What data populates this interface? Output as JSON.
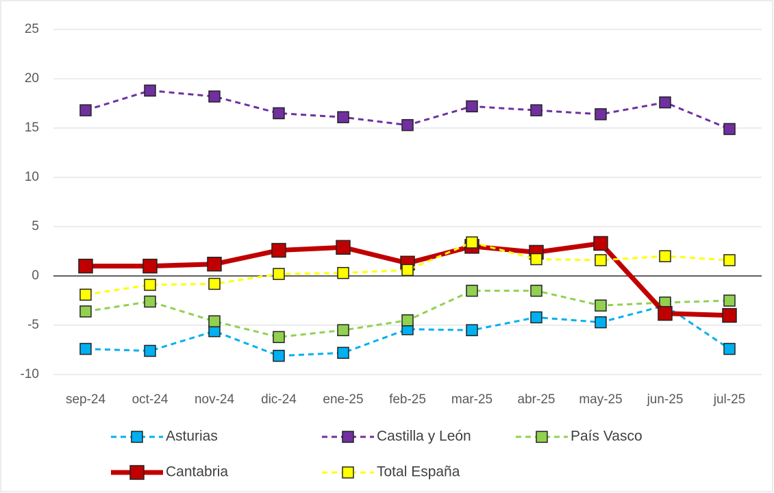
{
  "chart_data": {
    "type": "line",
    "categories": [
      "sep-24",
      "oct-24",
      "nov-24",
      "dic-24",
      "ene-25",
      "feb-25",
      "mar-25",
      "abr-25",
      "may-25",
      "jun-25",
      "jul-25"
    ],
    "series": [
      {
        "name": "Asturias",
        "color": "#00b0f0",
        "dashed": true,
        "values": [
          -7.4,
          -7.6,
          -5.6,
          -8.1,
          -7.8,
          -5.4,
          -5.5,
          -4.2,
          -4.7,
          -3.0,
          -7.4
        ]
      },
      {
        "name": "Castilla y León",
        "color": "#7030a0",
        "dashed": true,
        "values": [
          16.8,
          18.8,
          18.2,
          16.5,
          16.1,
          15.3,
          17.2,
          16.8,
          16.4,
          17.6,
          14.9
        ]
      },
      {
        "name": "País Vasco",
        "color": "#92d050",
        "dashed": true,
        "values": [
          -3.6,
          -2.6,
          -4.6,
          -6.2,
          -5.5,
          -4.5,
          -1.5,
          -1.5,
          -3.0,
          -2.7,
          -2.5
        ]
      },
      {
        "name": "Cantabria",
        "color": "#c00000",
        "dashed": false,
        "values": [
          1.0,
          1.0,
          1.2,
          2.6,
          2.9,
          1.3,
          3.0,
          2.4,
          3.3,
          -3.8,
          -4.0
        ]
      },
      {
        "name": "Total España",
        "color": "#ffff00",
        "dashed": true,
        "values": [
          -1.9,
          -0.9,
          -0.8,
          0.2,
          0.3,
          0.6,
          3.4,
          1.7,
          1.6,
          2.0,
          1.6
        ]
      }
    ],
    "ylim": [
      -10,
      25
    ],
    "yticks": [
      -10,
      -5,
      0,
      5,
      10,
      15,
      20,
      25
    ],
    "grid": true,
    "legend": "bottom"
  }
}
